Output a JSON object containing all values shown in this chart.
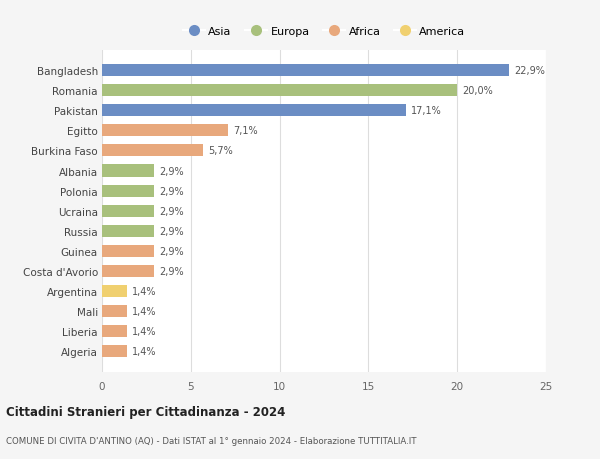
{
  "categories": [
    "Algeria",
    "Liberia",
    "Mali",
    "Argentina",
    "Costa d'Avorio",
    "Guinea",
    "Russia",
    "Ucraina",
    "Polonia",
    "Albania",
    "Burkina Faso",
    "Egitto",
    "Pakistan",
    "Romania",
    "Bangladesh"
  ],
  "values": [
    1.4,
    1.4,
    1.4,
    1.4,
    2.9,
    2.9,
    2.9,
    2.9,
    2.9,
    2.9,
    5.7,
    7.1,
    17.1,
    20.0,
    22.9
  ],
  "colors": [
    "#e8a87c",
    "#e8a87c",
    "#e8a87c",
    "#f0d070",
    "#e8a87c",
    "#e8a87c",
    "#a8c07c",
    "#a8c07c",
    "#a8c07c",
    "#a8c07c",
    "#e8a87c",
    "#e8a87c",
    "#6b8dc4",
    "#a8c07c",
    "#6b8dc4"
  ],
  "labels": [
    "1,4%",
    "1,4%",
    "1,4%",
    "1,4%",
    "2,9%",
    "2,9%",
    "2,9%",
    "2,9%",
    "2,9%",
    "2,9%",
    "5,7%",
    "7,1%",
    "17,1%",
    "20,0%",
    "22,9%"
  ],
  "legend": {
    "Asia": "#6b8dc4",
    "Europa": "#a8c07c",
    "Africa": "#e8a87c",
    "America": "#f0d070"
  },
  "title": "Cittadini Stranieri per Cittadinanza - 2024",
  "subtitle": "COMUNE DI CIVITA D'ANTINO (AQ) - Dati ISTAT al 1° gennaio 2024 - Elaborazione TUTTITALIA.IT",
  "xlim": [
    0,
    25
  ],
  "xticks": [
    0,
    5,
    10,
    15,
    20,
    25
  ],
  "bg_color": "#f5f5f5",
  "bar_bg_color": "#ffffff",
  "grid_color": "#dddddd"
}
